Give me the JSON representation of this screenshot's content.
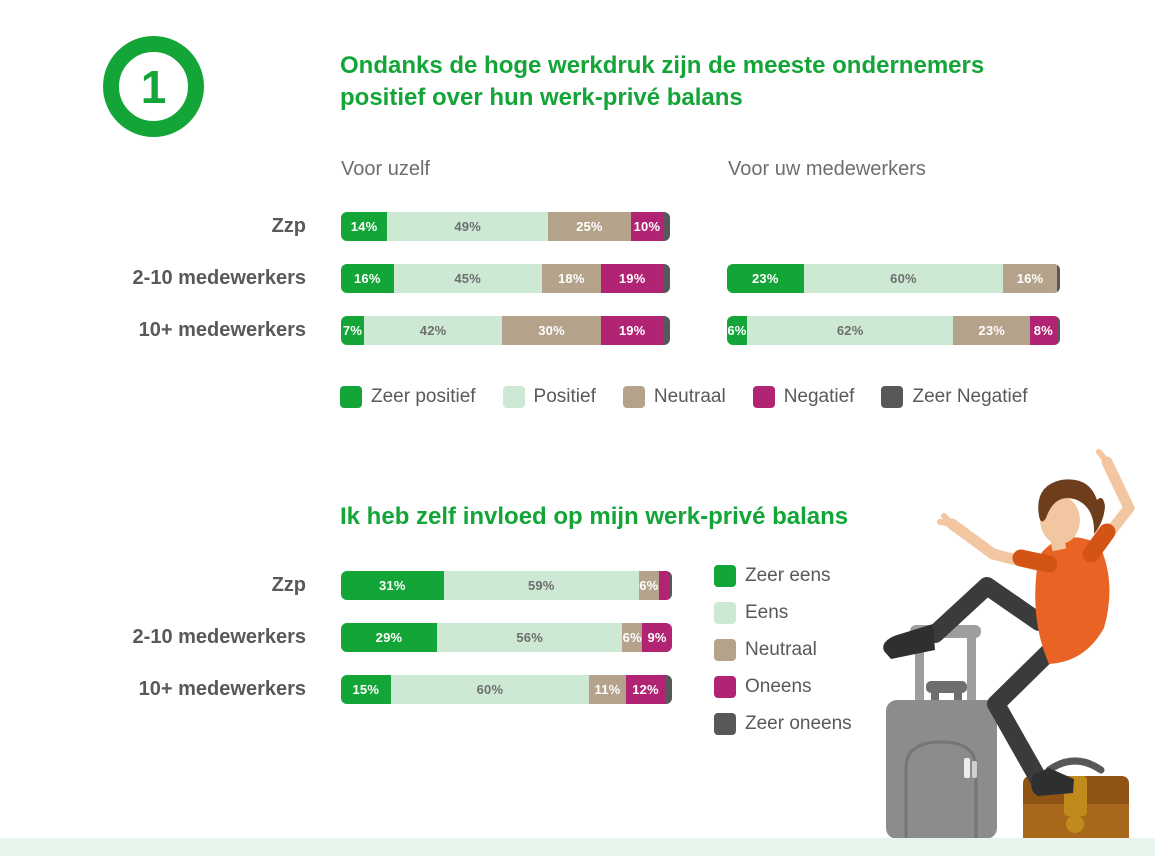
{
  "badge": {
    "number": "1"
  },
  "colors": {
    "accent_green": "#13a538",
    "light_green": "#cde9d3",
    "tan": "#b4a28a",
    "magenta": "#b02473",
    "dark_gray": "#57585a",
    "row_label_gray": "#58595b",
    "header_gray": "#6d6e71",
    "footer_strip": "#e7f4eb"
  },
  "section1": {
    "title": "Ondanks de hoge werkdruk zijn de meeste ondernemers positief over hun werk-privé balans",
    "col1_header": "Voor uzelf",
    "col2_header": "Voor uw medewerkers"
  },
  "section2": {
    "title": "Ik heb zelf invloed op mijn werk-privé balans"
  },
  "chart_data": [
    {
      "id": "voor-uzelf",
      "type": "bar",
      "stacked": true,
      "orientation": "horizontal",
      "title": "Voor uzelf",
      "unit": "%",
      "xlim": [
        0,
        100
      ],
      "label_min": 5,
      "legend_position": "bottom-horizontal",
      "categories": [
        "Zzp",
        "2-10 medewerkers",
        "10+ medewerkers"
      ],
      "series": [
        {
          "name": "Zeer positief",
          "color": "#13a538",
          "label_color": "#ffffff",
          "values": [
            14,
            16,
            7
          ]
        },
        {
          "name": "Positief",
          "color": "#cde9d3",
          "label_color": "#6d6e71",
          "values": [
            49,
            45,
            42
          ]
        },
        {
          "name": "Neutraal",
          "color": "#b4a28a",
          "label_color": "#ffffff",
          "values": [
            25,
            18,
            30
          ]
        },
        {
          "name": "Negatief",
          "color": "#b02473",
          "label_color": "#ffffff",
          "values": [
            10,
            19,
            19
          ]
        },
        {
          "name": "Zeer Negatief",
          "color": "#57585a",
          "label_color": "#ffffff",
          "values": [
            2,
            2,
            2
          ]
        }
      ]
    },
    {
      "id": "voor-uw-medewerkers",
      "type": "bar",
      "stacked": true,
      "orientation": "horizontal",
      "title": "Voor uw medewerkers",
      "unit": "%",
      "xlim": [
        0,
        100
      ],
      "label_min": 5,
      "legend_position": "shared-with-voor-uzelf",
      "categories": [
        "Zzp",
        "2-10 medewerkers",
        "10+ medewerkers"
      ],
      "series": [
        {
          "name": "Zeer positief",
          "color": "#13a538",
          "label_color": "#ffffff",
          "values": [
            null,
            23,
            6
          ]
        },
        {
          "name": "Positief",
          "color": "#cde9d3",
          "label_color": "#6d6e71",
          "values": [
            null,
            60,
            62
          ]
        },
        {
          "name": "Neutraal",
          "color": "#b4a28a",
          "label_color": "#ffffff",
          "values": [
            null,
            16,
            23
          ]
        },
        {
          "name": "Negatief",
          "color": "#b02473",
          "label_color": "#ffffff",
          "values": [
            null,
            0,
            8
          ]
        },
        {
          "name": "Zeer Negatief",
          "color": "#57585a",
          "label_color": "#ffffff",
          "values": [
            null,
            1,
            1
          ]
        }
      ]
    },
    {
      "id": "invloed-werk-prive-balans",
      "type": "bar",
      "stacked": true,
      "orientation": "horizontal",
      "title": "Ik heb zelf invloed op mijn werk-privé balans",
      "unit": "%",
      "xlim": [
        0,
        100
      ],
      "label_min": 5,
      "legend_position": "right-vertical",
      "categories": [
        "Zzp",
        "2-10 medewerkers",
        "10+ medewerkers"
      ],
      "series": [
        {
          "name": "Zeer eens",
          "color": "#13a538",
          "label_color": "#ffffff",
          "values": [
            31,
            29,
            15
          ]
        },
        {
          "name": "Eens",
          "color": "#cde9d3",
          "label_color": "#6d6e71",
          "values": [
            59,
            56,
            60
          ]
        },
        {
          "name": "Neutraal",
          "color": "#b4a28a",
          "label_color": "#ffffff",
          "values": [
            6,
            6,
            11
          ]
        },
        {
          "name": "Oneens",
          "color": "#b02473",
          "label_color": "#ffffff",
          "values": [
            3,
            9,
            12
          ]
        },
        {
          "name": "Zeer oneens",
          "color": "#57585a",
          "label_color": "#ffffff",
          "values": [
            1,
            0,
            2
          ]
        }
      ]
    }
  ]
}
